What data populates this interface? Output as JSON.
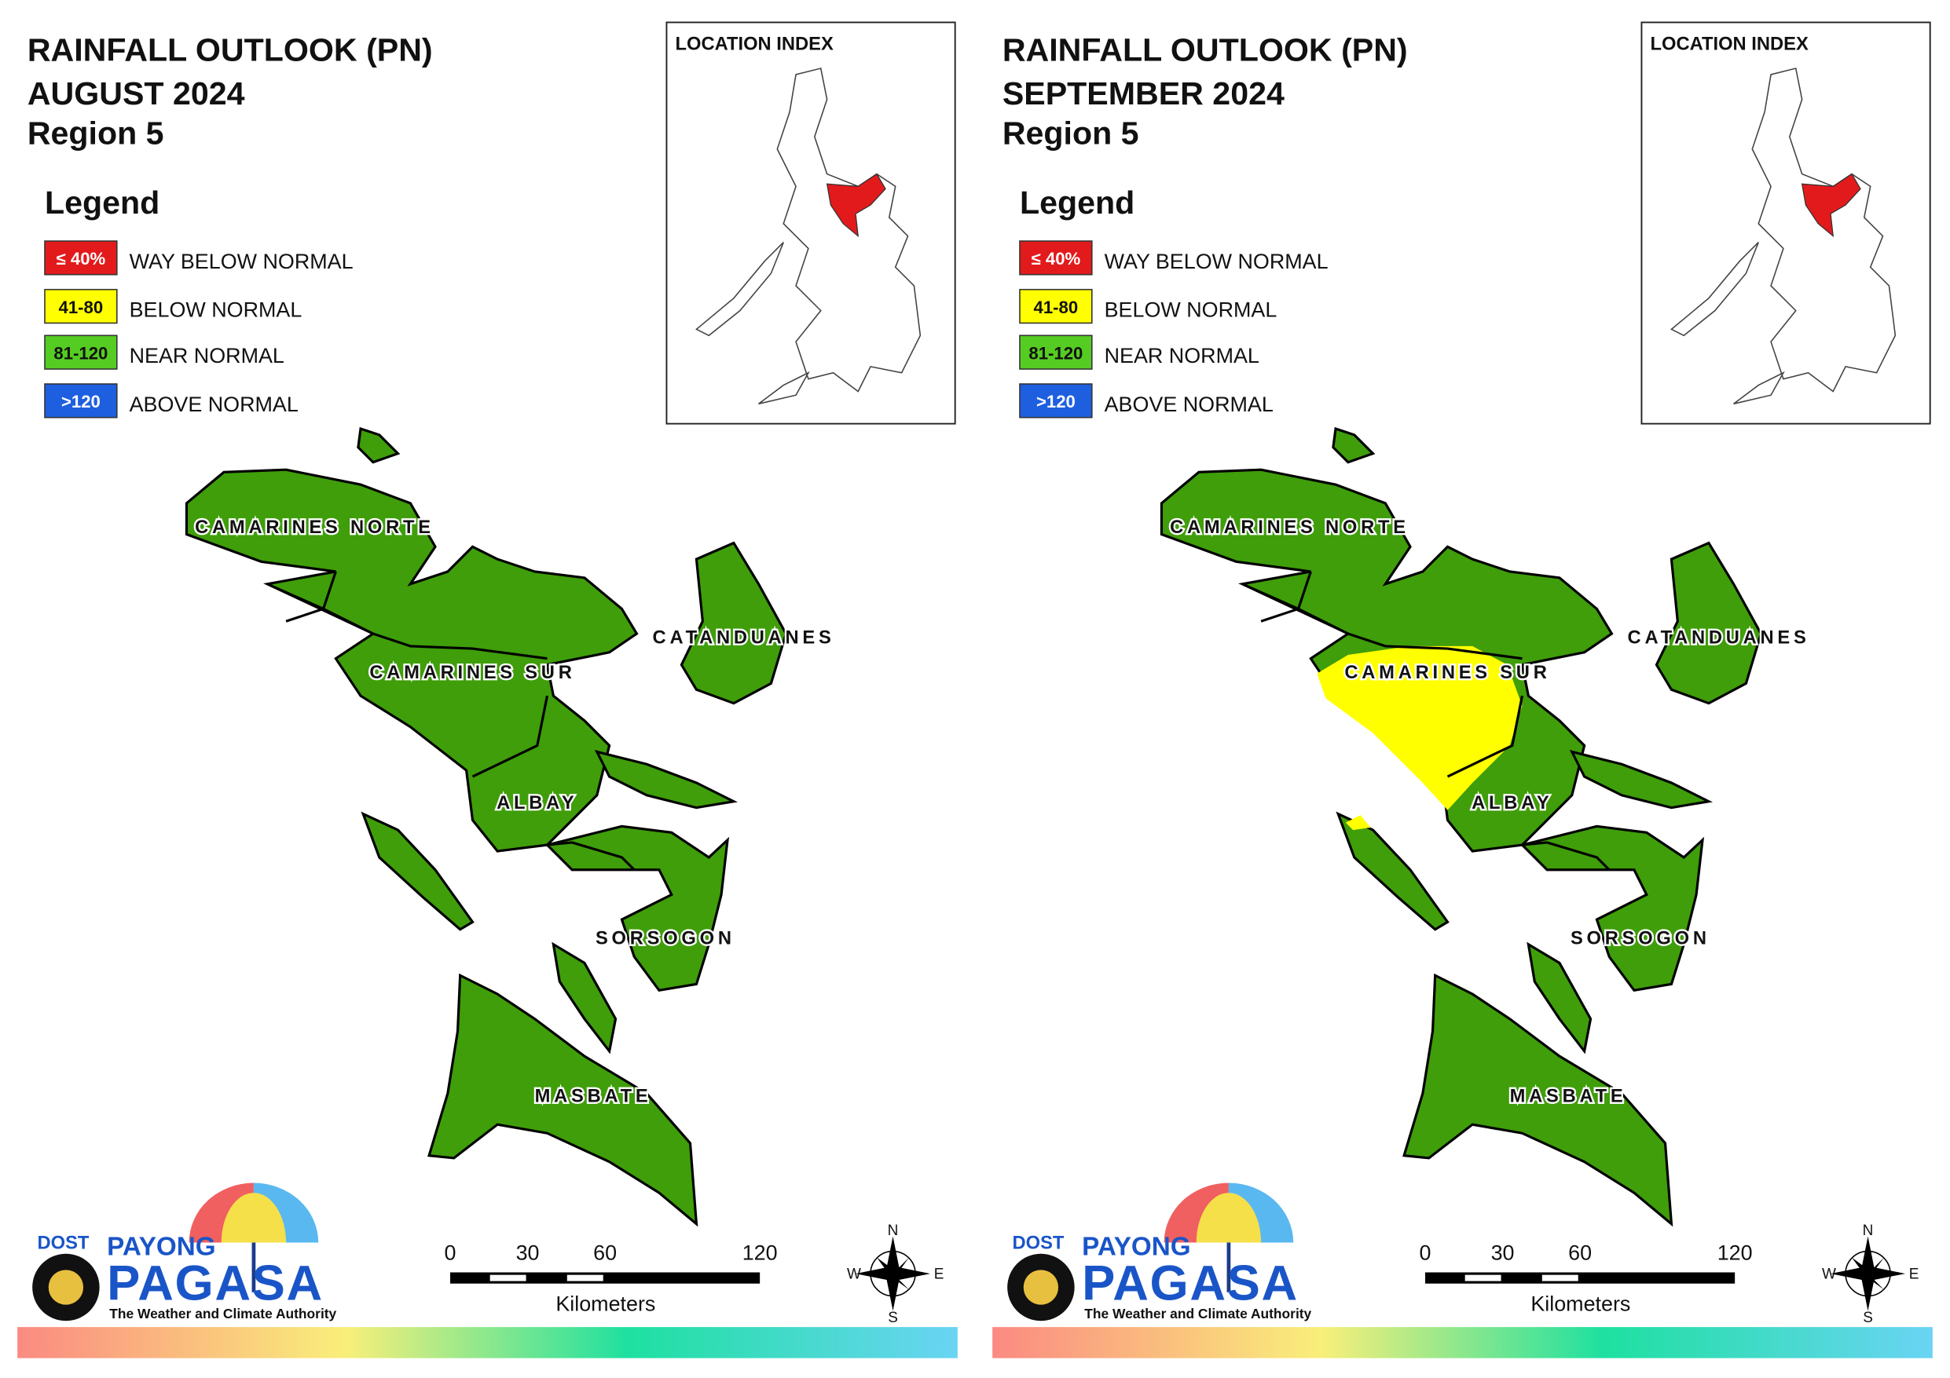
{
  "panels": [
    {
      "title": [
        "RAINFALL OUTLOOK (PN)",
        "AUGUST 2024",
        "Region 5"
      ],
      "legend": {
        "title": "Legend",
        "items": [
          {
            "code": "≤ 40%",
            "label": "WAY BELOW NORMAL",
            "color": "#e31a1c"
          },
          {
            "code": "41-80",
            "label": "BELOW NORMAL",
            "color": "#ffff00"
          },
          {
            "code": "81-120",
            "label": "NEAR NORMAL",
            "color": "#55cc22"
          },
          {
            "code": ">120",
            "label": "ABOVE NORMAL",
            "color": "#1e5fe0"
          }
        ]
      },
      "location_index": "LOCATION INDEX",
      "provinces": [
        "CAMARINES NORTE",
        "CAMARINES SUR",
        "CATANDUANES",
        "ALBAY",
        "SORSOGON",
        "MASBATE"
      ],
      "scale": {
        "ticks": [
          0,
          30,
          60,
          120
        ],
        "unit": "Kilometers"
      },
      "compass": {
        "n": "N",
        "e": "E",
        "s": "S",
        "w": "W"
      },
      "logo": {
        "agency": "DOST",
        "brand": "PAYONG",
        "name": "PAGASA",
        "tagline": "The Weather and Climate Authority"
      }
    },
    {
      "title": [
        "RAINFALL OUTLOOK (PN)",
        "SEPTEMBER 2024",
        "Region 5"
      ],
      "legend": {
        "title": "Legend",
        "items": [
          {
            "code": "≤ 40%",
            "label": "WAY BELOW NORMAL",
            "color": "#e31a1c"
          },
          {
            "code": "41-80",
            "label": "BELOW NORMAL",
            "color": "#ffff00"
          },
          {
            "code": "81-120",
            "label": "NEAR NORMAL",
            "color": "#55cc22"
          },
          {
            "code": ">120",
            "label": "ABOVE NORMAL",
            "color": "#1e5fe0"
          }
        ]
      },
      "location_index": "LOCATION INDEX",
      "provinces": [
        "CAMARINES NORTE",
        "CAMARINES SUR",
        "CATANDUANES",
        "ALBAY",
        "SORSOGON",
        "MASBATE"
      ],
      "scale": {
        "ticks": [
          0,
          30,
          60,
          120
        ],
        "unit": "Kilometers"
      },
      "compass": {
        "n": "N",
        "e": "E",
        "s": "S",
        "w": "W"
      },
      "logo": {
        "agency": "DOST",
        "brand": "PAYONG",
        "name": "PAGASA",
        "tagline": "The Weather and Climate Authority"
      }
    }
  ]
}
